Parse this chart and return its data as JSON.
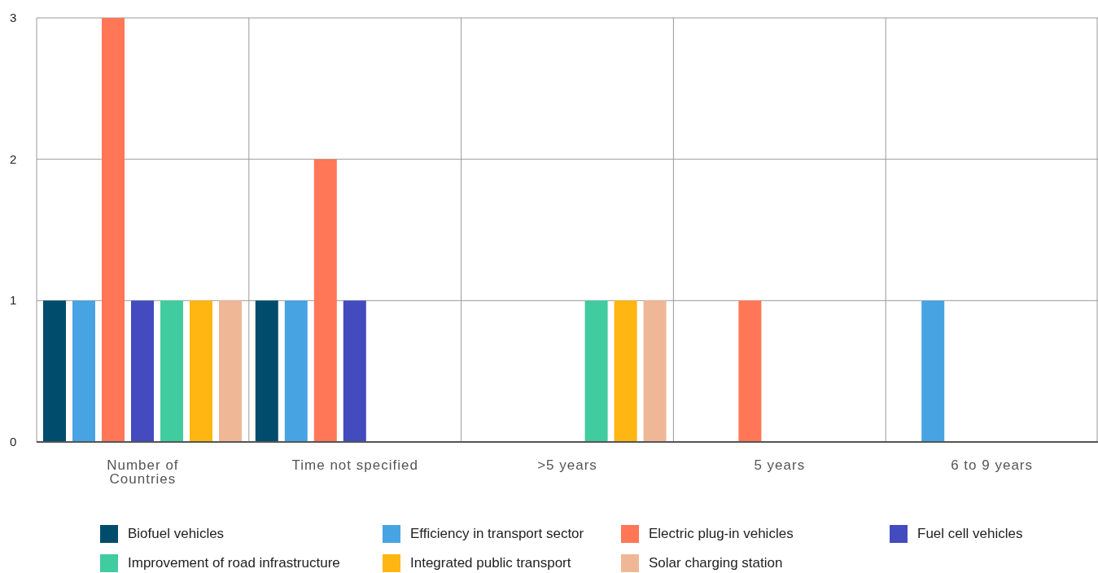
{
  "chart_data": {
    "type": "bar",
    "categories": [
      "Number of Countries",
      "Time not specified",
      ">5 years",
      "5 years",
      "6 to 9 years"
    ],
    "series": [
      {
        "name": "Biofuel vehicles",
        "color": "#004c6d",
        "values": [
          1,
          1,
          0,
          0,
          0
        ]
      },
      {
        "name": "Efficiency in transport sector",
        "color": "#48a3e3",
        "values": [
          1,
          1,
          0,
          0,
          1
        ]
      },
      {
        "name": "Electric plug-in vehicles",
        "color": "#ff7757",
        "values": [
          3,
          2,
          0,
          1,
          0
        ]
      },
      {
        "name": "Fuel cell vehicles",
        "color": "#434bbf",
        "values": [
          1,
          1,
          0,
          0,
          0
        ]
      },
      {
        "name": "Improvement of road infrastructure",
        "color": "#40cc9f",
        "values": [
          1,
          0,
          1,
          0,
          0
        ]
      },
      {
        "name": "Integrated public transport",
        "color": "#ffb612",
        "values": [
          1,
          0,
          1,
          0,
          0
        ]
      },
      {
        "name": "Solar charging station",
        "color": "#f0b796",
        "values": [
          1,
          0,
          1,
          0,
          0
        ]
      }
    ],
    "ylim": [
      0,
      3
    ],
    "yticks": [
      0,
      1,
      2,
      3
    ],
    "grid": true,
    "legend": "bottom"
  }
}
